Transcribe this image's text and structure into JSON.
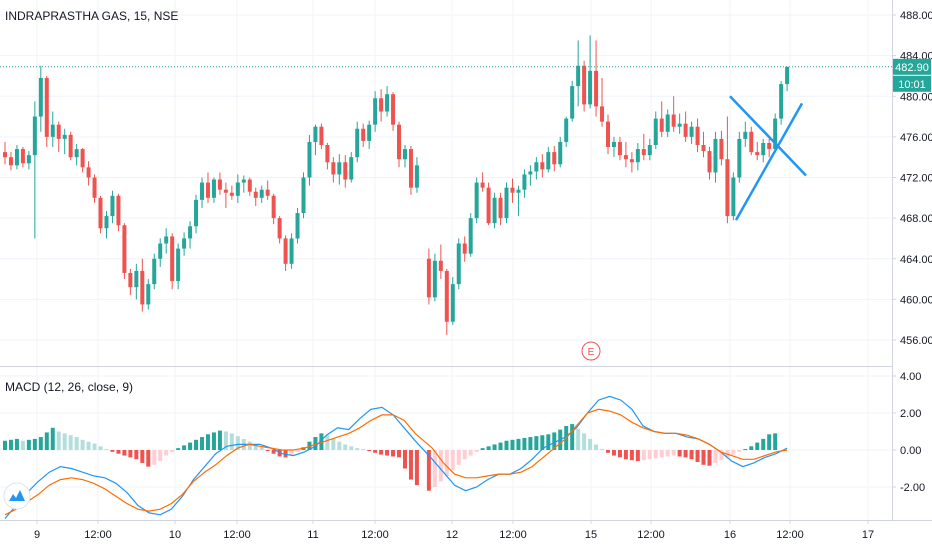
{
  "header": {
    "title": "INDRAPRASTHA GAS, 15, NSE",
    "macd_title": "MACD (12, 26, close, 9)"
  },
  "last_price": "482.90",
  "countdown": "10:01",
  "event_marker": "E",
  "colors": {
    "up": "#26a69a",
    "down": "#ef5350",
    "hist_up_strong": "#26a69a",
    "hist_up_weak": "#b2dfdb",
    "hist_down_strong": "#ef5350",
    "hist_down_weak": "#ffcdd2",
    "macd_line": "#2196f3",
    "signal_line": "#ff6d00",
    "pattern": "#2196f3",
    "price_line": "#26a69a"
  },
  "price_axis": {
    "ticks": [
      "488.00",
      "484.00",
      "480.00",
      "476.00",
      "472.00",
      "468.00",
      "464.00",
      "460.00",
      "456.00"
    ]
  },
  "macd_axis": {
    "ticks": [
      "4.00",
      "2.00",
      "0.00",
      "-2.00"
    ]
  },
  "time_axis": {
    "ticks": [
      "9",
      "12:00",
      "10",
      "12:00",
      "11",
      "12:00",
      "12",
      "12:00",
      "15",
      "12:00",
      "16",
      "12:00",
      "17"
    ]
  },
  "chart_data": [
    {
      "type": "candlestick",
      "title": "INDRAPRASTHA GAS, 15, NSE",
      "ylim": [
        454,
        490
      ],
      "x_ticks": [
        "9",
        "12:00",
        "10",
        "12:00",
        "11",
        "12:00",
        "12",
        "12:00",
        "15",
        "12:00",
        "16",
        "12:00",
        "17"
      ],
      "last_value": 482.9,
      "candles_ohlc": [
        [
          474.5,
          475.5,
          473.3,
          474.0
        ],
        [
          474.0,
          474.5,
          472.7,
          473.2
        ],
        [
          473.2,
          475.2,
          472.8,
          474.8
        ],
        [
          474.8,
          475.0,
          473.0,
          473.4
        ],
        [
          473.4,
          474.6,
          472.8,
          474.2
        ],
        [
          474.2,
          479.5,
          466.0,
          478.0
        ],
        [
          478.0,
          483.0,
          476.5,
          481.8
        ],
        [
          481.8,
          482.0,
          475.0,
          476.0
        ],
        [
          476.0,
          478.5,
          475.0,
          477.2
        ],
        [
          477.2,
          477.5,
          474.5,
          475.8
        ],
        [
          475.8,
          476.8,
          474.3,
          476.2
        ],
        [
          476.2,
          476.5,
          473.7,
          474.0
        ],
        [
          474.0,
          475.3,
          473.2,
          474.8
        ],
        [
          474.8,
          474.9,
          472.5,
          473.0
        ],
        [
          473.0,
          473.6,
          471.2,
          472.0
        ],
        [
          472.0,
          472.3,
          469.5,
          470.0
        ],
        [
          470.0,
          470.2,
          466.5,
          467.0
        ],
        [
          467.0,
          468.7,
          466.0,
          468.2
        ],
        [
          468.2,
          470.7,
          467.5,
          470.2
        ],
        [
          470.2,
          470.4,
          466.7,
          467.3
        ],
        [
          467.3,
          467.5,
          462.0,
          462.6
        ],
        [
          462.6,
          463.0,
          460.4,
          461.2
        ],
        [
          461.2,
          463.5,
          460.0,
          462.8
        ],
        [
          462.8,
          464.0,
          458.8,
          459.5
        ],
        [
          459.5,
          462.0,
          459.0,
          461.5
        ],
        [
          461.5,
          464.5,
          461.0,
          464.0
        ],
        [
          464.0,
          466.0,
          463.2,
          465.5
        ],
        [
          465.5,
          467.0,
          464.5,
          466.2
        ],
        [
          466.2,
          466.5,
          461.0,
          461.8
        ],
        [
          461.8,
          465.5,
          461.0,
          465.0
        ],
        [
          465.0,
          466.6,
          464.3,
          466.0
        ],
        [
          466.0,
          467.7,
          465.0,
          467.2
        ],
        [
          467.2,
          470.3,
          466.5,
          469.8
        ],
        [
          469.8,
          472.0,
          469.0,
          471.5
        ],
        [
          471.5,
          472.5,
          469.5,
          470.0
        ],
        [
          470.0,
          472.0,
          469.5,
          471.8
        ],
        [
          471.8,
          472.5,
          470.3,
          470.8
        ],
        [
          470.8,
          471.5,
          469.0,
          470.5
        ],
        [
          470.5,
          471.2,
          469.8,
          470.2
        ],
        [
          470.2,
          472.3,
          469.5,
          471.5
        ],
        [
          471.5,
          472.2,
          470.5,
          471.8
        ],
        [
          471.8,
          472.0,
          470.2,
          470.6
        ],
        [
          470.6,
          471.0,
          469.2,
          470.0
        ],
        [
          470.0,
          471.2,
          469.5,
          470.8
        ],
        [
          470.8,
          471.7,
          469.8,
          470.2
        ],
        [
          470.2,
          470.4,
          467.4,
          468.0
        ],
        [
          468.0,
          468.2,
          465.5,
          466.0
        ],
        [
          466.0,
          466.3,
          462.8,
          463.5
        ],
        [
          463.5,
          466.5,
          463.0,
          466.0
        ],
        [
          466.0,
          469.0,
          465.5,
          468.5
        ],
        [
          468.5,
          472.5,
          468.0,
          472.0
        ],
        [
          472.0,
          476.2,
          471.2,
          475.5
        ],
        [
          475.5,
          477.2,
          474.2,
          477.0
        ],
        [
          477.0,
          477.3,
          474.8,
          475.2
        ],
        [
          475.2,
          475.4,
          472.8,
          473.5
        ],
        [
          473.5,
          474.0,
          471.5,
          472.3
        ],
        [
          472.3,
          474.3,
          471.3,
          473.5
        ],
        [
          473.5,
          474.2,
          471.0,
          471.8
        ],
        [
          471.8,
          474.5,
          471.5,
          474.0
        ],
        [
          474.0,
          477.5,
          473.5,
          476.8
        ],
        [
          476.8,
          477.3,
          475.0,
          475.6
        ],
        [
          475.6,
          477.6,
          474.8,
          477.2
        ],
        [
          477.2,
          480.5,
          476.5,
          479.8
        ],
        [
          479.8,
          480.7,
          477.5,
          478.5
        ],
        [
          478.5,
          481.0,
          478.0,
          480.2
        ],
        [
          480.2,
          480.4,
          476.6,
          477.2
        ],
        [
          477.2,
          477.5,
          473.0,
          473.8
        ],
        [
          473.8,
          475.2,
          473.0,
          474.8
        ],
        [
          474.8,
          475.1,
          470.3,
          471.0
        ],
        [
          471.0,
          474.0,
          470.5,
          473.2
        ],
        [
          464.0,
          465.0,
          459.5,
          460.2
        ],
        [
          460.2,
          464.5,
          459.8,
          463.8
        ],
        [
          463.8,
          465.4,
          462.0,
          462.8
        ],
        [
          462.8,
          463.0,
          456.5,
          457.8
        ],
        [
          457.8,
          462.2,
          457.5,
          461.5
        ],
        [
          461.5,
          466.0,
          461.0,
          465.5
        ],
        [
          465.5,
          466.2,
          463.7,
          464.5
        ],
        [
          464.5,
          468.5,
          464.2,
          468.0
        ],
        [
          468.0,
          472.0,
          467.5,
          471.5
        ],
        [
          471.5,
          472.5,
          470.6,
          471.0
        ],
        [
          471.0,
          471.5,
          467.3,
          467.5
        ],
        [
          467.5,
          470.5,
          467.0,
          470.0
        ],
        [
          470.0,
          470.5,
          467.3,
          468.0
        ],
        [
          468.0,
          471.5,
          467.5,
          471.0
        ],
        [
          471.0,
          471.9,
          469.5,
          470.5
        ],
        [
          470.5,
          471.2,
          468.2,
          470.8
        ],
        [
          470.8,
          472.8,
          470.0,
          472.3
        ],
        [
          472.3,
          473.2,
          471.2,
          472.6
        ],
        [
          472.6,
          474.0,
          471.8,
          473.5
        ],
        [
          473.5,
          474.3,
          472.0,
          472.8
        ],
        [
          472.8,
          475.0,
          472.5,
          474.5
        ],
        [
          474.5,
          475.1,
          472.6,
          473.3
        ],
        [
          473.3,
          476.0,
          473.0,
          475.5
        ],
        [
          475.5,
          478.0,
          475.0,
          477.8
        ],
        [
          477.8,
          481.5,
          477.5,
          481.0
        ],
        [
          481.0,
          485.5,
          479.0,
          483.0
        ],
        [
          483.0,
          483.5,
          478.5,
          479.2
        ],
        [
          479.2,
          486.0,
          478.8,
          482.5
        ],
        [
          482.5,
          485.5,
          478.0,
          479.0
        ],
        [
          479.0,
          481.8,
          477.0,
          477.5
        ],
        [
          477.5,
          478.2,
          474.3,
          475.0
        ],
        [
          475.0,
          476.0,
          474.0,
          475.5
        ],
        [
          475.5,
          476.0,
          473.7,
          474.2
        ],
        [
          474.2,
          475.5,
          473.0,
          473.8
        ],
        [
          473.8,
          474.5,
          472.5,
          473.5
        ],
        [
          473.5,
          475.4,
          472.7,
          474.8
        ],
        [
          474.8,
          476.3,
          473.7,
          474.2
        ],
        [
          474.2,
          475.8,
          473.7,
          475.2
        ],
        [
          475.2,
          478.5,
          474.8,
          477.8
        ],
        [
          477.8,
          479.5,
          476.0,
          476.5
        ],
        [
          476.5,
          478.7,
          476.0,
          478.2
        ],
        [
          478.2,
          480.0,
          476.5,
          477.0
        ],
        [
          477.0,
          478.3,
          476.3,
          477.3
        ],
        [
          477.3,
          478.5,
          475.5,
          476.0
        ],
        [
          476.0,
          477.5,
          475.3,
          477.0
        ],
        [
          477.0,
          477.8,
          474.5,
          475.2
        ],
        [
          475.2,
          476.5,
          474.0,
          474.6
        ],
        [
          474.6,
          475.0,
          471.8,
          472.5
        ],
        [
          472.5,
          476.5,
          471.5,
          475.8
        ],
        [
          475.8,
          476.6,
          473.2,
          473.8
        ],
        [
          473.8,
          478.0,
          467.5,
          468.2
        ],
        [
          468.2,
          472.5,
          467.8,
          472.0
        ],
        [
          472.0,
          476.5,
          471.5,
          475.8
        ],
        [
          475.8,
          477.5,
          475.0,
          476.5
        ],
        [
          476.5,
          477.0,
          474.2,
          474.5
        ],
        [
          474.5,
          475.5,
          473.7,
          474.2
        ],
        [
          474.2,
          475.8,
          473.5,
          475.4
        ],
        [
          475.4,
          475.8,
          474.0,
          474.8
        ],
        [
          474.8,
          478.3,
          474.5,
          477.8
        ],
        [
          477.8,
          481.5,
          477.2,
          481.2
        ],
        [
          481.2,
          482.9,
          480.5,
          482.9
        ]
      ]
    },
    {
      "type": "macd",
      "title": "MACD (12, 26, close, 9)",
      "ylim": [
        -3.8,
        4.3
      ],
      "series": [
        {
          "name": "Histogram",
          "values": [
            0.5,
            0.55,
            0.6,
            0.5,
            0.55,
            0.6,
            0.7,
            0.95,
            1.2,
            1.0,
            0.9,
            0.8,
            0.7,
            0.55,
            0.45,
            0.35,
            0.2,
            0.05,
            -0.1,
            -0.2,
            -0.3,
            -0.4,
            -0.5,
            -0.7,
            -0.9,
            -0.8,
            -0.6,
            -0.3,
            -0.1,
            0.1,
            0.25,
            0.4,
            0.55,
            0.7,
            0.85,
            0.95,
            1.05,
            1.0,
            0.9,
            0.75,
            0.6,
            0.45,
            0.3,
            0.15,
            -0.05,
            -0.2,
            -0.35,
            -0.4,
            -0.3,
            -0.1,
            0.15,
            0.45,
            0.7,
            0.9,
            0.8,
            0.6,
            0.45,
            0.3,
            0.2,
            0.1,
            0.05,
            -0.05,
            -0.15,
            -0.25,
            -0.3,
            -0.35,
            -0.4,
            -1.0,
            -1.6,
            -1.9,
            -2.2,
            -2.0,
            -1.7,
            -1.4,
            -1.1,
            -0.8,
            -0.5,
            -0.3,
            -0.1,
            0.1,
            0.2,
            0.3,
            0.4,
            0.5,
            0.55,
            0.6,
            0.65,
            0.7,
            0.75,
            0.8,
            0.85,
            0.95,
            1.1,
            1.3,
            1.4,
            1.15,
            0.9,
            0.6,
            0.3,
            0.05,
            -0.15,
            -0.3,
            -0.4,
            -0.5,
            -0.55,
            -0.6,
            -0.55,
            -0.5,
            -0.45,
            -0.4,
            -0.35,
            -0.3,
            -0.35,
            -0.4,
            -0.5,
            -0.65,
            -0.8,
            -0.85,
            -0.7,
            -0.55,
            -0.4,
            -0.25,
            -0.1,
            0.05,
            0.2,
            0.4,
            0.6,
            0.85,
            0.9
          ]
        },
        {
          "name": "MACD",
          "values": [
            -3.7,
            -3.0,
            -2.3,
            -1.7,
            -1.2,
            -0.9,
            -1.0,
            -1.2,
            -1.4,
            -1.5,
            -1.8,
            -2.3,
            -3.0,
            -3.4,
            -3.5,
            -3.2,
            -2.5,
            -1.6,
            -0.9,
            -0.2,
            0.2,
            0.3,
            0.3,
            0.3,
            0.1,
            -0.2,
            -0.3,
            -0.1,
            0.2,
            0.8,
            1.2,
            1.1,
            1.7,
            2.2,
            2.3,
            1.9,
            1.2,
            0.5,
            -0.5,
            -1.2,
            -1.9,
            -2.2,
            -2.0,
            -1.6,
            -1.3,
            -1.3,
            -1.0,
            -0.5,
            0.1,
            0.4,
            0.7,
            1.2,
            2.0,
            2.7,
            2.9,
            2.7,
            2.2,
            1.3,
            1.0,
            0.9,
            0.9,
            0.7,
            0.6,
            0.3,
            -0.1,
            -0.6,
            -0.9,
            -0.7,
            -0.4,
            -0.2,
            0.1
          ]
        },
        {
          "name": "Signal",
          "values": [
            -3.5,
            -3.2,
            -2.8,
            -2.4,
            -1.9,
            -1.6,
            -1.5,
            -1.6,
            -1.8,
            -2.1,
            -2.5,
            -2.9,
            -3.2,
            -3.3,
            -3.2,
            -2.9,
            -2.4,
            -1.7,
            -1.2,
            -0.8,
            -0.3,
            0.1,
            0.3,
            0.2,
            0.1,
            0.0,
            0.0,
            0.1,
            0.3,
            0.5,
            0.7,
            0.9,
            1.2,
            1.6,
            1.9,
            1.9,
            1.6,
            0.9,
            0.1,
            -0.7,
            -1.3,
            -1.5,
            -1.5,
            -1.4,
            -1.3,
            -1.3,
            -1.2,
            -0.9,
            -0.4,
            0.1,
            0.6,
            1.3,
            2.0,
            2.2,
            2.1,
            1.9,
            1.5,
            1.2,
            1.0,
            0.9,
            0.9,
            0.8,
            0.6,
            0.3,
            -0.1,
            -0.3,
            -0.5,
            -0.5,
            -0.3,
            -0.1,
            0.0
          ]
        }
      ]
    }
  ]
}
